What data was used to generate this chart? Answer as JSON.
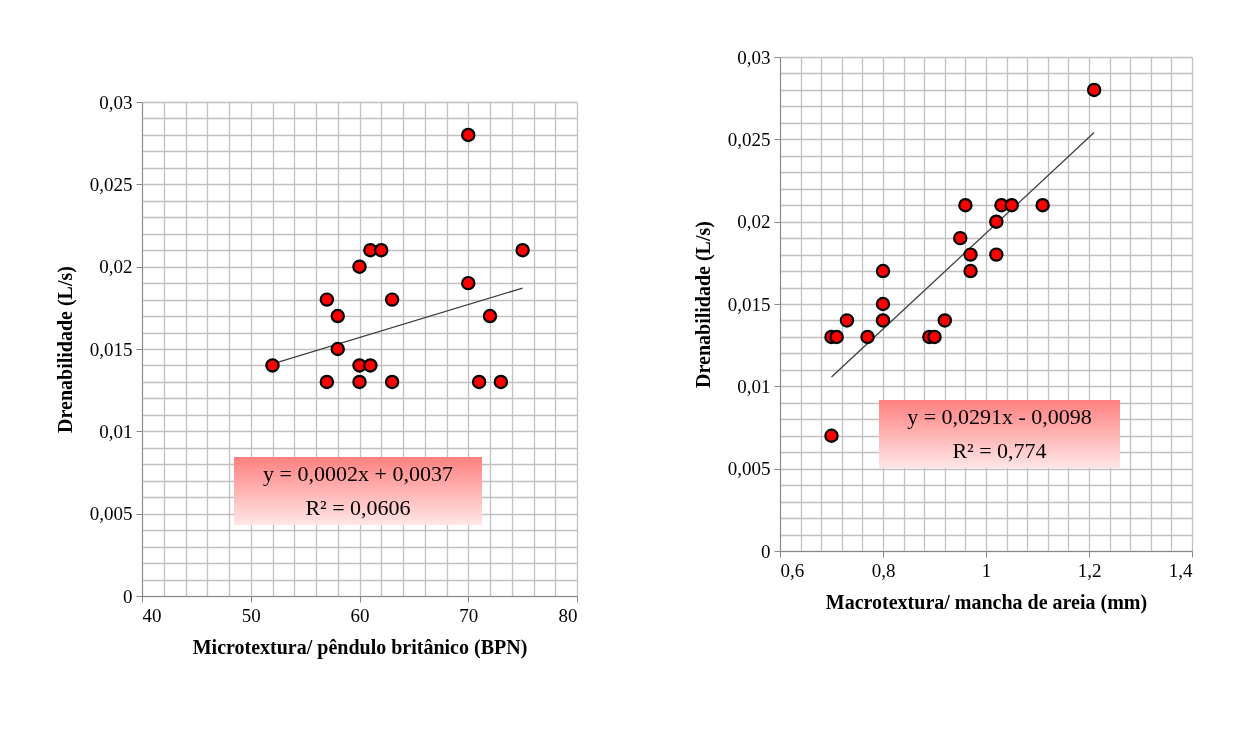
{
  "chart_data": [
    {
      "type": "scatter",
      "xlabel": "Microtextura/ pêndulo britânico (BPN)",
      "ylabel": "Drenabilidade  (L/s)",
      "grid": true,
      "xlim": [
        40,
        80
      ],
      "ylim": [
        0,
        0.03
      ],
      "xticks": [
        40,
        {
          "value": 42,
          "label": null
        },
        {
          "value": 44,
          "label": null
        },
        {
          "value": 46,
          "label": null
        },
        {
          "value": 48,
          "label": null
        },
        50,
        {
          "value": 52,
          "label": null
        },
        {
          "value": 54,
          "label": null
        },
        {
          "value": 56,
          "label": null
        },
        {
          "value": 58,
          "label": null
        },
        60,
        {
          "value": 62,
          "label": null
        },
        {
          "value": 64,
          "label": null
        },
        {
          "value": 66,
          "label": null
        },
        {
          "value": 68,
          "label": null
        },
        70,
        {
          "value": 72,
          "label": null
        },
        {
          "value": 74,
          "label": null
        },
        {
          "value": 76,
          "label": null
        },
        {
          "value": 78,
          "label": null
        },
        80
      ],
      "yticks": [
        0,
        {
          "value": 0.001,
          "label": null
        },
        {
          "value": 0.002,
          "label": null
        },
        {
          "value": 0.003,
          "label": null
        },
        {
          "value": 0.004,
          "label": null
        },
        {
          "value": 0.005,
          "label": "0,005"
        },
        {
          "value": 0.006,
          "label": null
        },
        {
          "value": 0.007,
          "label": null
        },
        {
          "value": 0.008,
          "label": null
        },
        {
          "value": 0.009,
          "label": null
        },
        {
          "value": 0.01,
          "label": "0,01"
        },
        {
          "value": 0.011,
          "label": null
        },
        {
          "value": 0.012,
          "label": null
        },
        {
          "value": 0.013,
          "label": null
        },
        {
          "value": 0.014,
          "label": null
        },
        {
          "value": 0.015,
          "label": "0,015"
        },
        {
          "value": 0.016,
          "label": null
        },
        {
          "value": 0.017,
          "label": null
        },
        {
          "value": 0.018,
          "label": null
        },
        {
          "value": 0.019,
          "label": null
        },
        {
          "value": 0.02,
          "label": "0,02"
        },
        {
          "value": 0.021,
          "label": null
        },
        {
          "value": 0.022,
          "label": null
        },
        {
          "value": 0.023,
          "label": null
        },
        {
          "value": 0.024,
          "label": null
        },
        {
          "value": 0.025,
          "label": "0,025"
        },
        {
          "value": 0.026,
          "label": null
        },
        {
          "value": 0.027,
          "label": null
        },
        {
          "value": 0.028,
          "label": null
        },
        {
          "value": 0.029,
          "label": null
        },
        {
          "value": 0.03,
          "label": "0,03"
        }
      ],
      "series": [
        {
          "color": "#ff0000",
          "marker": "circle",
          "x": [
            52,
            57,
            57,
            58,
            58,
            60,
            60,
            60,
            61,
            61,
            62,
            63,
            63,
            70,
            70,
            71,
            72,
            73,
            75
          ],
          "values": [
            0.014,
            0.018,
            0.013,
            0.017,
            0.015,
            0.02,
            0.014,
            0.013,
            0.021,
            0.014,
            0.021,
            0.018,
            0.013,
            0.028,
            0.019,
            0.013,
            0.017,
            0.013,
            0.021
          ]
        },
        {
          "type": "line",
          "color": "#404040",
          "x": [
            52,
            75
          ],
          "values": [
            0.0141,
            0.0187
          ]
        }
      ],
      "annotations": [
        "y = 0,0002x + 0,0037",
        "R² = 0,0606"
      ]
    },
    {
      "type": "scatter",
      "xlabel": "Macrotextura/ mancha de areia (mm)",
      "ylabel": "Drenabilidade  (L/s)",
      "grid": true,
      "xlim": [
        0.6,
        1.4
      ],
      "ylim": [
        0,
        0.03
      ],
      "xticks": [
        {
          "value": 0.6,
          "label": "0,6"
        },
        {
          "value": 0.64,
          "label": null
        },
        {
          "value": 0.68,
          "label": null
        },
        {
          "value": 0.72,
          "label": null
        },
        {
          "value": 0.76,
          "label": null
        },
        {
          "value": 0.8,
          "label": "0,8"
        },
        {
          "value": 0.84,
          "label": null
        },
        {
          "value": 0.88,
          "label": null
        },
        {
          "value": 0.92,
          "label": null
        },
        {
          "value": 0.96,
          "label": null
        },
        1,
        {
          "value": 1.04,
          "label": null
        },
        {
          "value": 1.08,
          "label": null
        },
        {
          "value": 1.12,
          "label": null
        },
        {
          "value": 1.16,
          "label": null
        },
        {
          "value": 1.2,
          "label": "1,2"
        },
        {
          "value": 1.24,
          "label": null
        },
        {
          "value": 1.28,
          "label": null
        },
        {
          "value": 1.32,
          "label": null
        },
        {
          "value": 1.36,
          "label": null
        },
        {
          "value": 1.4,
          "label": "1,4"
        }
      ],
      "yticks": [
        0,
        {
          "value": 0.001,
          "label": null
        },
        {
          "value": 0.002,
          "label": null
        },
        {
          "value": 0.003,
          "label": null
        },
        {
          "value": 0.004,
          "label": null
        },
        {
          "value": 0.005,
          "label": "0,005"
        },
        {
          "value": 0.006,
          "label": null
        },
        {
          "value": 0.007,
          "label": null
        },
        {
          "value": 0.008,
          "label": null
        },
        {
          "value": 0.009,
          "label": null
        },
        {
          "value": 0.01,
          "label": "0,01"
        },
        {
          "value": 0.011,
          "label": null
        },
        {
          "value": 0.012,
          "label": null
        },
        {
          "value": 0.013,
          "label": null
        },
        {
          "value": 0.014,
          "label": null
        },
        {
          "value": 0.015,
          "label": "0,015"
        },
        {
          "value": 0.016,
          "label": null
        },
        {
          "value": 0.017,
          "label": null
        },
        {
          "value": 0.018,
          "label": null
        },
        {
          "value": 0.019,
          "label": null
        },
        {
          "value": 0.02,
          "label": "0,02"
        },
        {
          "value": 0.021,
          "label": null
        },
        {
          "value": 0.022,
          "label": null
        },
        {
          "value": 0.023,
          "label": null
        },
        {
          "value": 0.024,
          "label": null
        },
        {
          "value": 0.025,
          "label": "0,025"
        },
        {
          "value": 0.026,
          "label": null
        },
        {
          "value": 0.027,
          "label": null
        },
        {
          "value": 0.028,
          "label": null
        },
        {
          "value": 0.029,
          "label": null
        },
        {
          "value": 0.03,
          "label": "0,03"
        }
      ],
      "series": [
        {
          "color": "#ff0000",
          "marker": "circle",
          "x": [
            0.7,
            0.71,
            0.73,
            0.77,
            0.8,
            0.8,
            0.8,
            0.89,
            0.9,
            0.92,
            0.95,
            0.96,
            0.97,
            0.97,
            1.02,
            1.02,
            1.03,
            1.05,
            1.11,
            1.21,
            0.7
          ],
          "values": [
            0.013,
            0.013,
            0.014,
            0.013,
            0.017,
            0.015,
            0.014,
            0.013,
            0.013,
            0.014,
            0.019,
            0.021,
            0.018,
            0.017,
            0.02,
            0.018,
            0.021,
            0.021,
            0.021,
            0.028,
            0.007
          ]
        },
        {
          "type": "line",
          "color": "#404040",
          "x": [
            0.7,
            1.21
          ],
          "values": [
            0.01057,
            0.02541
          ]
        }
      ],
      "annotations": [
        "y = 0,0291x - 0,0098",
        "R² = 0,774"
      ]
    }
  ]
}
